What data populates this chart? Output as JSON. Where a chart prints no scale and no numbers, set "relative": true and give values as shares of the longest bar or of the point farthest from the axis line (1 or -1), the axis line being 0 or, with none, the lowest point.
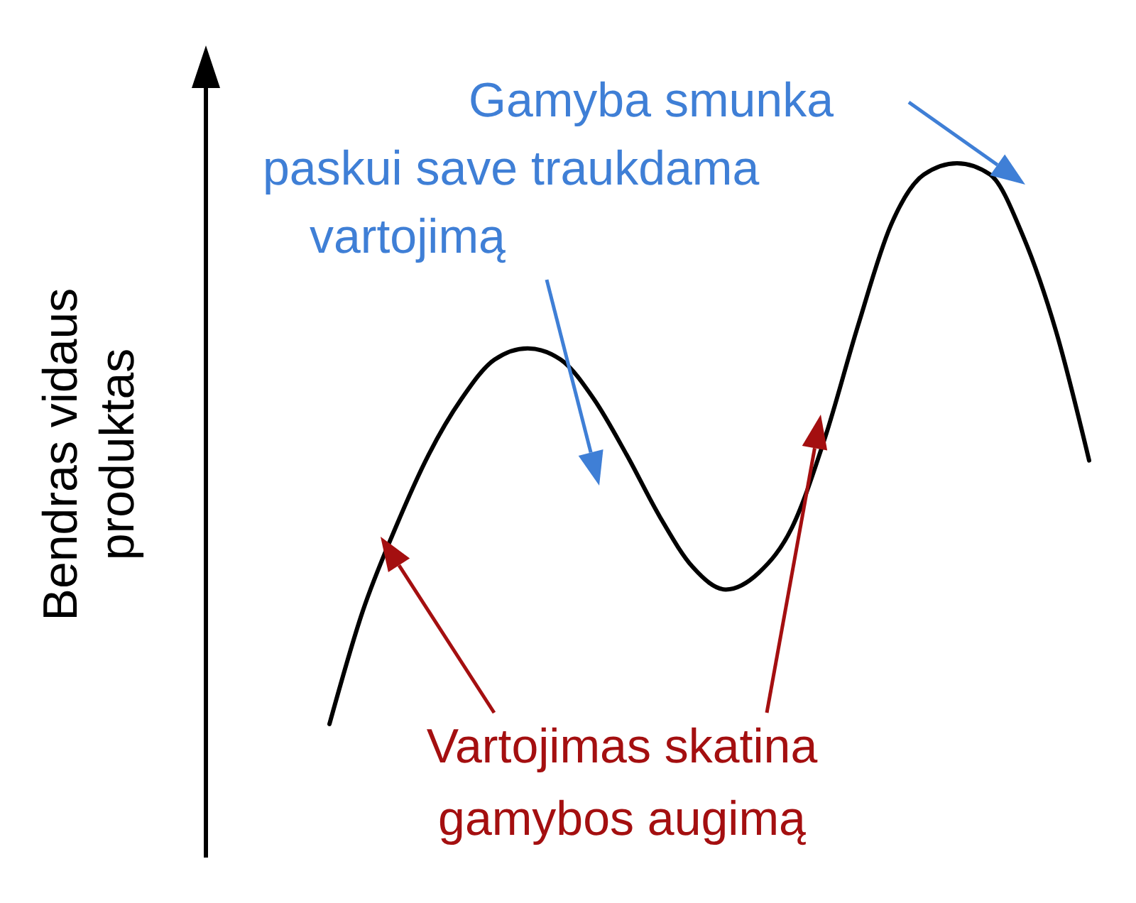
{
  "chart_data": {
    "type": "line",
    "relative": true,
    "ylabel": "Bendras vidaus\nproduktas",
    "categories": [
      null,
      null,
      null,
      null,
      null,
      null,
      null,
      null,
      null,
      null,
      null,
      null,
      null,
      null,
      null,
      null,
      null,
      null,
      null,
      null,
      null,
      null,
      null,
      null
    ],
    "series": [
      {
        "color": "#000000",
        "values": [
          0,
          0.2,
          0.35,
          0.48,
          0.58,
          0.65,
          0.67,
          0.65,
          0.58,
          0.48,
          0.37,
          0.28,
          0.24,
          0.27,
          0.35,
          0.51,
          0.71,
          0.89,
          0.98,
          1,
          0.98,
          0.87,
          0.7,
          0.47
        ]
      }
    ],
    "annotations": [
      "Gamyba smunka\npaskui save traukdama\nvartojimą",
      "Vartojimas skatina\ngamybos augimą"
    ]
  }
}
